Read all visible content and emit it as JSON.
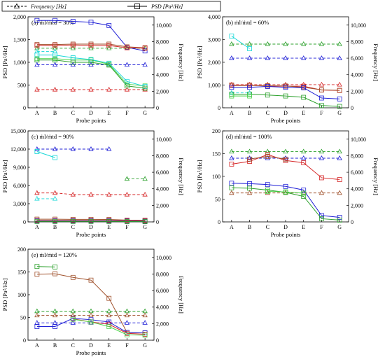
{
  "legend": {
    "frequency_label": "Frequency [Hz]",
    "psd_label": "PSD [Pa²/Hz]"
  },
  "colors": {
    "red": "#d62728",
    "green": "#2ca02c",
    "blue": "#1f1fd6",
    "cyan": "#17d7d7",
    "brown": "#a0522d",
    "orange": "#e07b39",
    "lightgreen": "#4cd64c",
    "axis": "#000000"
  },
  "chart_data": [
    {
      "type": "line",
      "title": "(a) ṁl/ṁtd = 30%",
      "xlabel": "Probe points",
      "ylabel": "PSD [Pa²/Hz]",
      "y2label": "Frequency [Hz]",
      "categories": [
        "A",
        "B",
        "C",
        "D",
        "E",
        "F",
        "G"
      ],
      "ylim": [
        0,
        2000
      ],
      "yticks": [
        "0",
        "500",
        "1,000",
        "1,500",
        "2,000"
      ],
      "y2lim": [
        0,
        11000
      ],
      "y2ticks": [
        "0",
        "2,000",
        "4,000",
        "6,000",
        "8,000",
        "10,000"
      ],
      "psd_series": [
        {
          "color": "blue",
          "values": [
            1920,
            1920,
            1900,
            1880,
            1810,
            1330,
            1250
          ]
        },
        {
          "color": "brown",
          "values": [
            1390,
            1390,
            1400,
            1400,
            1400,
            1340,
            1320
          ]
        },
        {
          "color": "red",
          "values": [
            1370,
            1370,
            1380,
            1370,
            1370,
            1320,
            1310
          ]
        },
        {
          "color": "lightgreen",
          "values": [
            1080,
            1080,
            1050,
            1050,
            960,
            520,
            480
          ]
        },
        {
          "color": "cyan",
          "values": [
            1160,
            1160,
            1100,
            1060,
            980,
            580,
            470
          ]
        },
        {
          "color": "green",
          "values": [
            1050,
            1050,
            1000,
            1000,
            940,
            480,
            430
          ]
        }
      ],
      "freq_series": [
        {
          "color": "green",
          "values": [
            7200,
            7200,
            7200,
            7200,
            7200,
            7200,
            7200
          ]
        },
        {
          "color": "cyan",
          "values": [
            6800,
            6800,
            null,
            null,
            null,
            null,
            null
          ]
        },
        {
          "color": "blue",
          "values": [
            5200,
            5200,
            5200,
            5200,
            5200,
            5200,
            5200
          ]
        },
        {
          "color": "red",
          "values": [
            2200,
            2200,
            2200,
            2200,
            2200,
            2200,
            2200
          ]
        }
      ]
    },
    {
      "type": "line",
      "title": "(b) ṁl/ṁtd = 60%",
      "xlabel": "Probe points",
      "ylabel": "PSD [Pa²/Hz]",
      "y2label": "Frequency [Hz]",
      "categories": [
        "A",
        "B",
        "C",
        "D",
        "E",
        "F",
        "G"
      ],
      "ylim": [
        0,
        4000
      ],
      "yticks": [
        "0",
        "1,000",
        "2,000",
        "3,000",
        "4,000"
      ],
      "y2lim": [
        0,
        11000
      ],
      "y2ticks": [
        "0",
        "2,000",
        "4,000",
        "6,000",
        "8,000",
        "10,000"
      ],
      "psd_series": [
        {
          "color": "cyan",
          "values": [
            3150,
            2600,
            null,
            null,
            null,
            null,
            null
          ]
        },
        {
          "color": "red",
          "values": [
            1000,
            1000,
            950,
            950,
            950,
            780,
            760
          ]
        },
        {
          "color": "brown",
          "values": [
            980,
            980,
            970,
            960,
            900,
            790,
            770
          ]
        },
        {
          "color": "blue",
          "values": [
            900,
            900,
            940,
            900,
            880,
            430,
            390
          ]
        },
        {
          "color": "green",
          "values": [
            600,
            600,
            560,
            520,
            460,
            100,
            60
          ]
        },
        {
          "color": "lightgreen",
          "values": [
            520,
            520,
            null,
            null,
            null,
            null,
            null
          ]
        }
      ],
      "freq_series": [
        {
          "color": "green",
          "values": [
            7700,
            7700,
            7700,
            7700,
            7700,
            7700,
            7700
          ]
        },
        {
          "color": "blue",
          "values": [
            6000,
            6000,
            6000,
            6000,
            6000,
            6000,
            6000
          ]
        },
        {
          "color": "red",
          "values": [
            2800,
            2800,
            2800,
            2800,
            2800,
            2800,
            2800
          ]
        },
        {
          "color": "cyan",
          "values": [
            1800,
            1800,
            null,
            null,
            null,
            null,
            null
          ]
        }
      ]
    },
    {
      "type": "line",
      "title": "(c) ṁl/ṁtd = 90%",
      "xlabel": "Probe points",
      "ylabel": "PSD [Pa²/Hz]",
      "y2label": "Frequency [Hz]",
      "categories": [
        "A",
        "B",
        "C",
        "D",
        "E",
        "F",
        "G"
      ],
      "ylim": [
        0,
        15000
      ],
      "yticks": [
        "0",
        "3,000",
        "6,000",
        "9,000",
        "12,000",
        "15,000"
      ],
      "y2lim": [
        0,
        11000
      ],
      "y2ticks": [
        "0",
        "2,000",
        "4,000",
        "6,000",
        "8,000",
        "10,000"
      ],
      "psd_series": [
        {
          "color": "cyan",
          "values": [
            11600,
            10600,
            null,
            null,
            null,
            null,
            null
          ]
        },
        {
          "color": "brown",
          "values": [
            450,
            450,
            420,
            420,
            400,
            300,
            280
          ]
        },
        {
          "color": "red",
          "values": [
            250,
            250,
            250,
            250,
            250,
            200,
            180
          ]
        },
        {
          "color": "blue",
          "values": [
            150,
            150,
            150,
            150,
            150,
            120,
            100
          ]
        },
        {
          "color": "green",
          "values": [
            80,
            80,
            80,
            80,
            80,
            60,
            50
          ]
        }
      ],
      "freq_series": [
        {
          "color": "blue",
          "values": [
            8800,
            8800,
            8800,
            8800,
            8800,
            null,
            null
          ]
        },
        {
          "color": "green",
          "values": [
            null,
            null,
            null,
            null,
            null,
            5200,
            5200
          ]
        },
        {
          "color": "red",
          "values": [
            3500,
            3500,
            3300,
            3300,
            3300,
            3300,
            3300
          ]
        },
        {
          "color": "cyan",
          "values": [
            2800,
            2800,
            null,
            null,
            null,
            null,
            null
          ]
        }
      ]
    },
    {
      "type": "line",
      "title": "(d) ṁl/ṁtd = 100%",
      "xlabel": "Probe points",
      "ylabel": "PSD [Pa²/Hz]",
      "y2label": "Frequency [Hz]",
      "categories": [
        "A",
        "B",
        "C",
        "D",
        "E",
        "F",
        "G"
      ],
      "ylim": [
        0,
        200
      ],
      "yticks": [
        "0",
        "50",
        "100",
        "150",
        "200"
      ],
      "y2lim": [
        0,
        11000
      ],
      "y2ticks": [
        "0",
        "2,000",
        "4,000",
        "6,000",
        "8,000",
        "10,000"
      ],
      "psd_series": [
        {
          "color": "red",
          "values": [
            127,
            133,
            148,
            135,
            130,
            97,
            93
          ]
        },
        {
          "color": "brown",
          "values": [
            null,
            138,
            144,
            138,
            null,
            null,
            null
          ]
        },
        {
          "color": "blue",
          "values": [
            85,
            84,
            82,
            78,
            70,
            14,
            10
          ]
        },
        {
          "color": "green",
          "values": [
            75,
            74,
            70,
            65,
            56,
            7,
            4
          ]
        },
        {
          "color": "lightgreen",
          "values": [
            null,
            null,
            67,
            66,
            63,
            null,
            null
          ]
        }
      ],
      "freq_series": [
        {
          "color": "green",
          "values": [
            8500,
            8500,
            8500,
            8500,
            8500,
            8500,
            8500
          ]
        },
        {
          "color": "blue",
          "values": [
            7700,
            7700,
            7700,
            7700,
            7700,
            7700,
            7700
          ]
        },
        {
          "color": "brown",
          "values": [
            3500,
            3500,
            3500,
            3500,
            3500,
            3500,
            3500
          ]
        }
      ]
    },
    {
      "type": "line",
      "title": "(e) ṁl/ṁtd = 120%",
      "xlabel": "Probe points",
      "ylabel": "PSD [Pa²/Hz]",
      "y2label": "Frequency [Hz]",
      "categories": [
        "A",
        "B",
        "C",
        "D",
        "E",
        "F",
        "G"
      ],
      "ylim": [
        0,
        200
      ],
      "yticks": [
        "0",
        "50",
        "100",
        "150",
        "200"
      ],
      "y2lim": [
        0,
        11000
      ],
      "y2ticks": [
        "0",
        "2,000",
        "4,000",
        "6,000",
        "8,000",
        "10,000"
      ],
      "psd_series": [
        {
          "color": "green",
          "values": [
            162,
            161,
            null,
            null,
            null,
            null,
            null
          ]
        },
        {
          "color": "brown",
          "values": [
            145,
            146,
            138,
            132,
            92,
            17,
            16
          ]
        },
        {
          "color": "blue",
          "values": [
            30,
            30,
            48,
            45,
            40,
            17,
            16
          ]
        },
        {
          "color": "red",
          "values": [
            null,
            null,
            47,
            40,
            35,
            15,
            13
          ]
        },
        {
          "color": "lightgreen",
          "values": [
            null,
            null,
            46,
            40,
            30,
            12,
            11
          ]
        }
      ],
      "freq_series": [
        {
          "color": "green",
          "values": [
            3500,
            3500,
            3500,
            3500,
            3500,
            3500,
            3500
          ]
        },
        {
          "color": "brown",
          "values": [
            3000,
            3000,
            3000,
            3000,
            3000,
            3000,
            3000
          ]
        },
        {
          "color": "blue",
          "values": [
            2100,
            2100,
            2100,
            2100,
            2100,
            2100,
            2100
          ]
        }
      ]
    }
  ]
}
